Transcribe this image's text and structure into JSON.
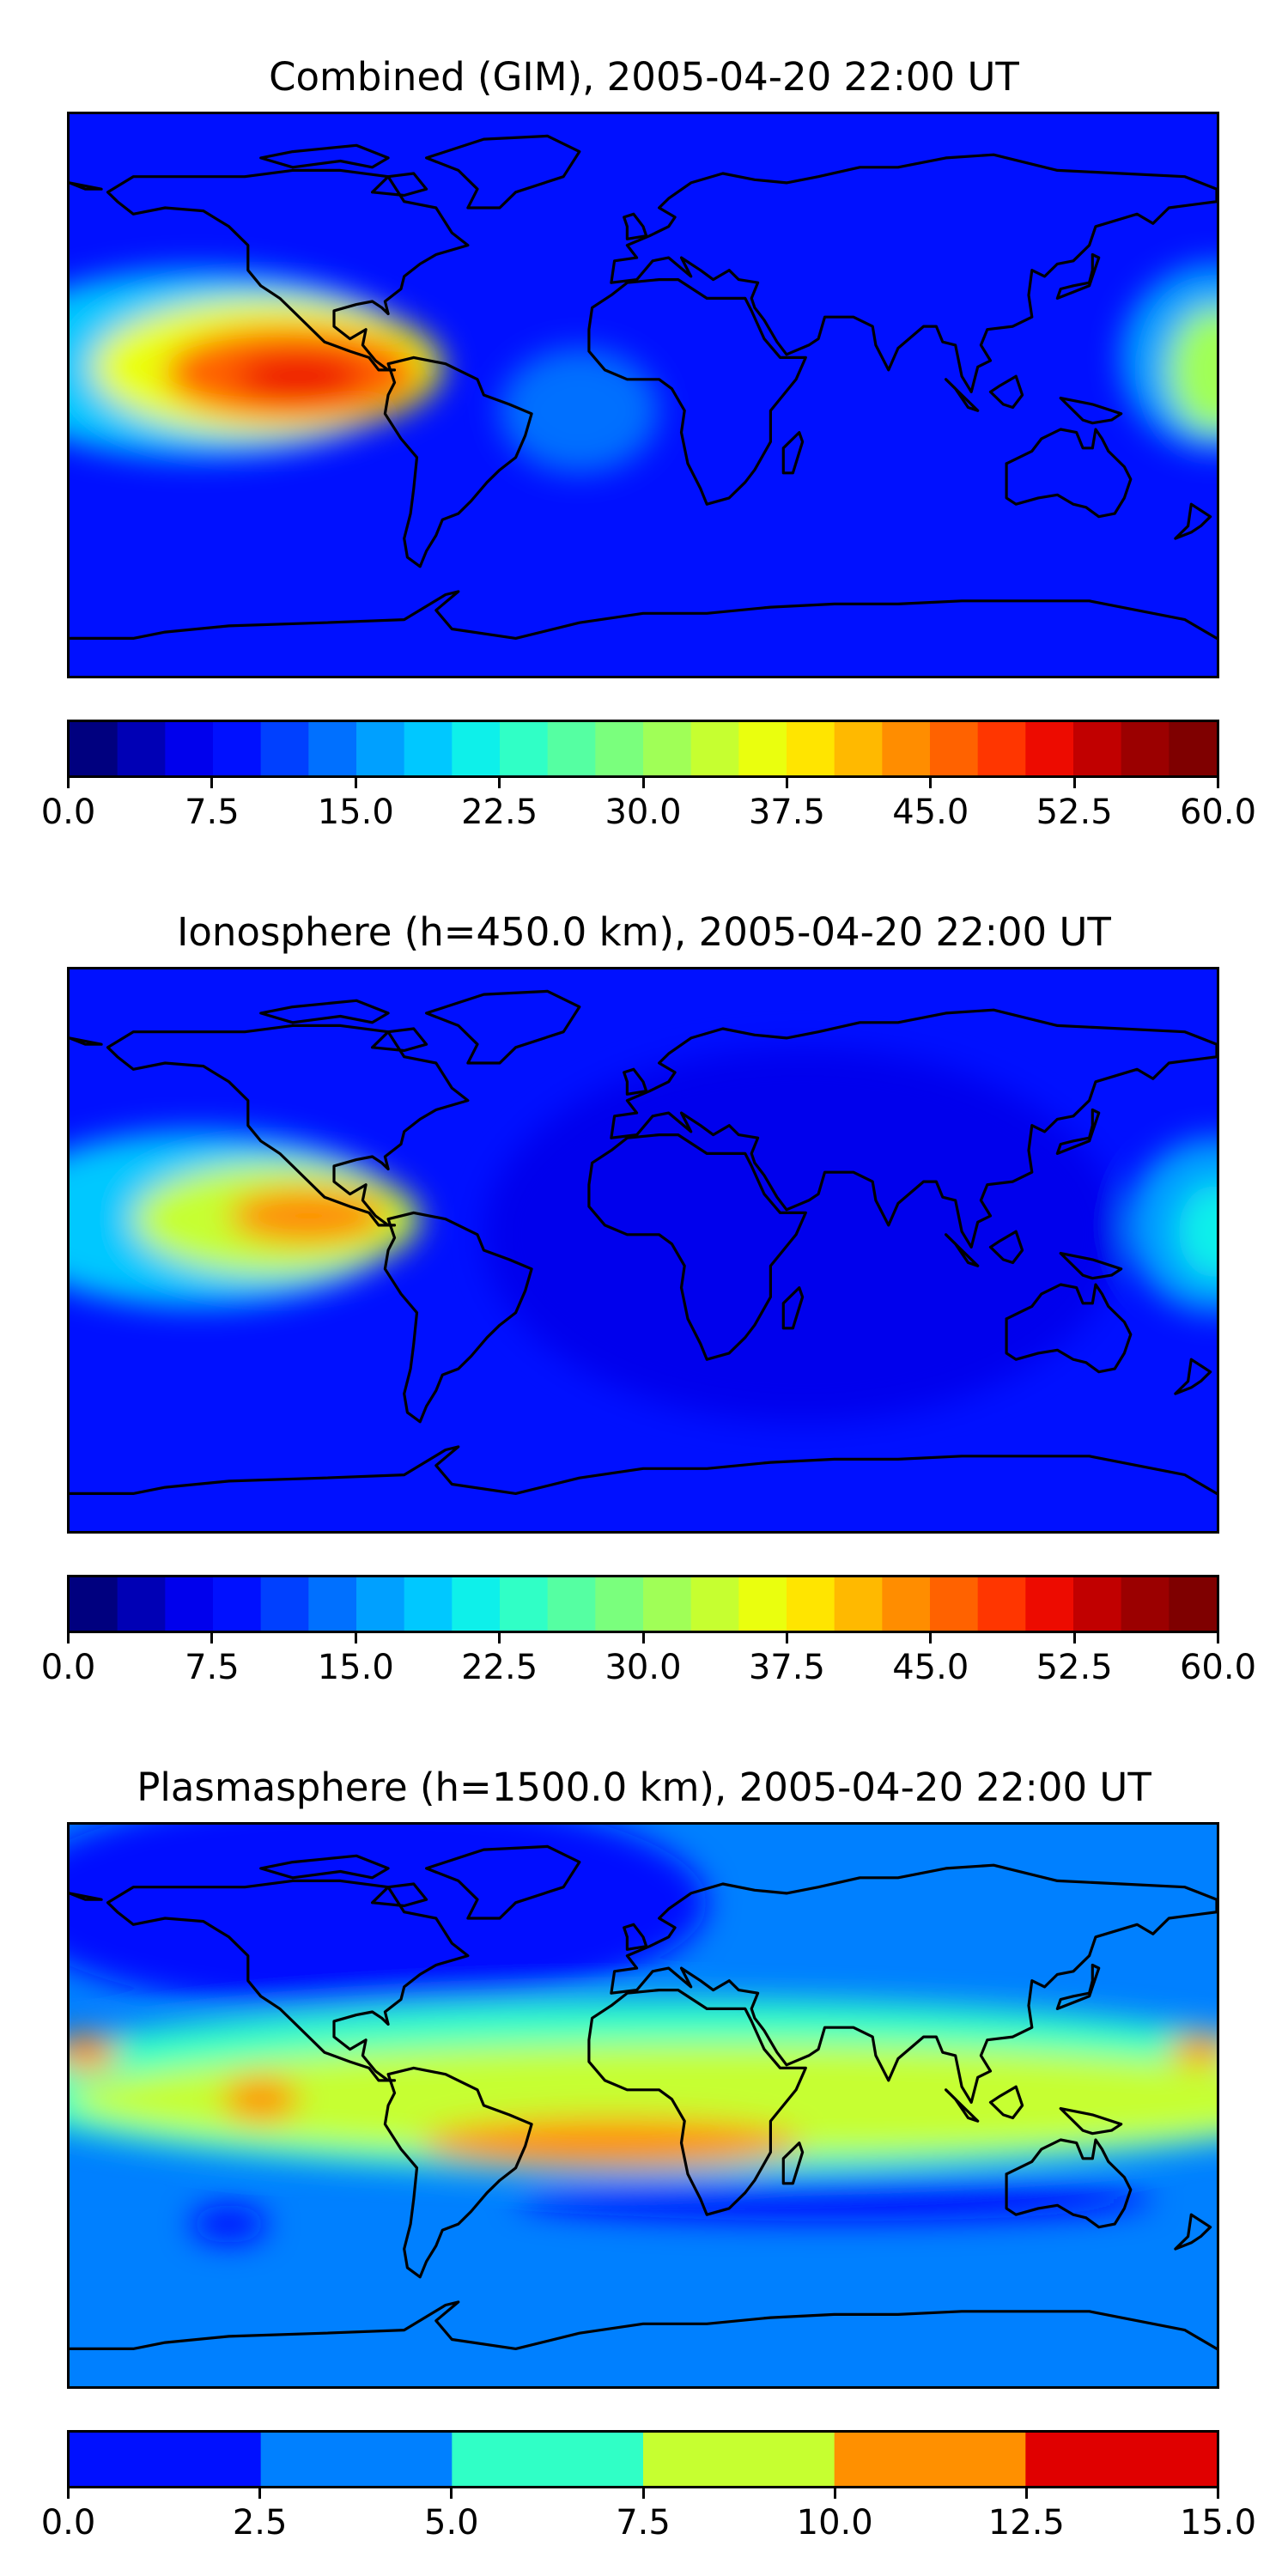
{
  "panels": [
    {
      "title": "Combined (GIM), 2005-04-20 22:00 UT",
      "colorbar": {
        "min": 0,
        "max": 60,
        "levels": 24,
        "colors": [
          "#00007f",
          "#0000b5",
          "#0000ed",
          "#0010ff",
          "#0040ff",
          "#0070ff",
          "#00a0ff",
          "#00c8ff",
          "#0ef0ea",
          "#30ffc6",
          "#55ffa2",
          "#7aff7d",
          "#a0ff57",
          "#c6ff30",
          "#eaff0e",
          "#ffe500",
          "#ffb900",
          "#ff8d00",
          "#ff6200",
          "#ff3600",
          "#ed0b00",
          "#c10000",
          "#9b0000",
          "#7f0000"
        ],
        "tick_labels": [
          "0.0",
          "7.5",
          "15.0",
          "22.5",
          "30.0",
          "37.5",
          "45.0",
          "52.5",
          "60.0"
        ]
      },
      "field": {
        "background": "#0010ff",
        "blobs": [
          {
            "lon": -140,
            "lat": 10,
            "rx": 70,
            "ry": 30,
            "color": "#00c8ff"
          },
          {
            "lon": -118,
            "lat": 9,
            "rx": 55,
            "ry": 22,
            "color": "#eaff0e"
          },
          {
            "lon": -110,
            "lat": 7,
            "rx": 40,
            "ry": 15,
            "color": "#ff6200"
          },
          {
            "lon": -108,
            "lat": 6,
            "rx": 20,
            "ry": 7,
            "color": "#ed0b00"
          },
          {
            "lon": 180,
            "lat": 12,
            "rx": 30,
            "ry": 30,
            "color": "#00a0ff"
          },
          {
            "lon": 180,
            "lat": 8,
            "rx": 15,
            "ry": 20,
            "color": "#a0ff57"
          },
          {
            "lon": -20,
            "lat": -5,
            "rx": 25,
            "ry": 20,
            "color": "#0070ff"
          }
        ]
      }
    },
    {
      "title": "Ionosphere  (h=450.0 km), 2005-04-20 22:00 UT",
      "colorbar": {
        "min": 0,
        "max": 60,
        "levels": 24,
        "colors": [
          "#00007f",
          "#0000b5",
          "#0000ed",
          "#0010ff",
          "#0040ff",
          "#0070ff",
          "#00a0ff",
          "#00c8ff",
          "#0ef0ea",
          "#30ffc6",
          "#55ffa2",
          "#7aff7d",
          "#a0ff57",
          "#c6ff30",
          "#eaff0e",
          "#ffe500",
          "#ffb900",
          "#ff8d00",
          "#ff6200",
          "#ff3600",
          "#ed0b00",
          "#c10000",
          "#9b0000",
          "#7f0000"
        ],
        "tick_labels": [
          "0.0",
          "7.5",
          "15.0",
          "22.5",
          "30.0",
          "37.5",
          "45.0",
          "52.5",
          "60.0"
        ]
      },
      "field": {
        "background": "#0010ff",
        "blobs": [
          {
            "lon": 50,
            "lat": 5,
            "rx": 100,
            "ry": 60,
            "color": "#0000ed"
          },
          {
            "lon": -140,
            "lat": 10,
            "rx": 65,
            "ry": 28,
            "color": "#00c8ff"
          },
          {
            "lon": -115,
            "lat": 10,
            "rx": 45,
            "ry": 18,
            "color": "#c6ff30"
          },
          {
            "lon": -105,
            "lat": 11,
            "rx": 25,
            "ry": 9,
            "color": "#ff8d00"
          },
          {
            "lon": 180,
            "lat": 8,
            "rx": 28,
            "ry": 28,
            "color": "#00a0ff"
          },
          {
            "lon": 180,
            "lat": 6,
            "rx": 12,
            "ry": 15,
            "color": "#0ef0ea"
          }
        ]
      }
    },
    {
      "title": "Plasmasphere (h=1500.0 km), 2005-04-20 22:00 UT",
      "colorbar": {
        "min": 0,
        "max": 15,
        "levels": 6,
        "colors": [
          "#0010ff",
          "#0080ff",
          "#30ffc6",
          "#c6ff30",
          "#ff9000",
          "#e00000"
        ],
        "tick_labels": [
          "0.0",
          "2.5",
          "5.0",
          "7.5",
          "10.0",
          "12.5",
          "15.0"
        ]
      },
      "field": {
        "background": "#0080ff",
        "blobs": [
          {
            "lon": -90,
            "lat": 65,
            "rx": 110,
            "ry": 35,
            "color": "#0010ff"
          },
          {
            "lon": 10,
            "lat": 6,
            "rx": 220,
            "ry": 28,
            "color": "#30ffc6"
          },
          {
            "lon": 20,
            "lat": 2,
            "rx": 200,
            "ry": 18,
            "color": "#c6ff30"
          },
          {
            "lon": -10,
            "lat": -12,
            "rx": 60,
            "ry": 8,
            "color": "#ff9000"
          },
          {
            "lon": -120,
            "lat": 2,
            "rx": 12,
            "ry": 7,
            "color": "#ff9000"
          },
          {
            "lon": 175,
            "lat": 18,
            "rx": 10,
            "ry": 5,
            "color": "#ff9000"
          },
          {
            "lon": -175,
            "lat": 17,
            "rx": 10,
            "ry": 6,
            "color": "#ff9000"
          },
          {
            "lon": 60,
            "lat": -30,
            "rx": 100,
            "ry": 7,
            "color": "#0010ff"
          },
          {
            "lon": -130,
            "lat": -38,
            "rx": 12,
            "ry": 6,
            "color": "#0010ff"
          }
        ]
      }
    }
  ]
}
